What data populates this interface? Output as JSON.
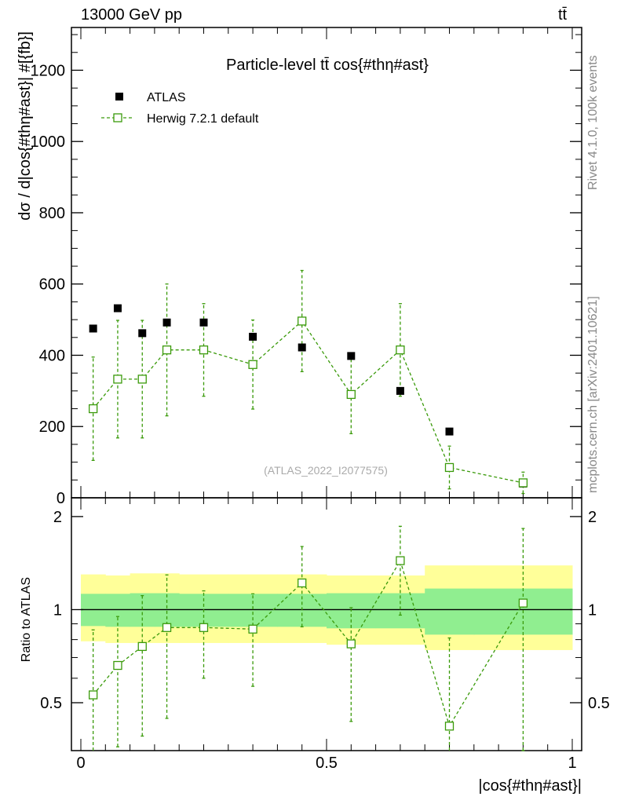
{
  "header": {
    "left": "13000 GeV pp",
    "right": "tt̄"
  },
  "side_labels": {
    "rivet": "Rivet 4.1.0,  100k events",
    "mcplots": "mcplots.cern.ch [arXiv:2401.10621]"
  },
  "colors": {
    "data": "#000000",
    "mc": "#3a9a0a",
    "band_inner": "#90ee90",
    "band_outer": "#ffff99"
  },
  "chart_data": [
    {
      "type": "scatter",
      "title": "Particle-level tt̄ cos{#thη#ast}",
      "ylabel": "dσ / d|cos{#thη#ast}| #[{fb}]",
      "xlabel": "",
      "xlim": [
        0,
        1
      ],
      "ylim": [
        0,
        1320
      ],
      "yticks": [
        0,
        200,
        400,
        600,
        800,
        1000,
        1200
      ],
      "ytick_labels": [
        "0",
        "200",
        "400",
        "600",
        "800",
        "1000",
        "1200"
      ],
      "watermark": "(ATLAS_2022_I2077575)",
      "legend": [
        "ATLAS",
        "Herwig 7.2.1 default"
      ],
      "bins": [
        [
          0.0,
          0.05
        ],
        [
          0.05,
          0.1
        ],
        [
          0.1,
          0.15
        ],
        [
          0.15,
          0.2
        ],
        [
          0.2,
          0.3
        ],
        [
          0.3,
          0.4
        ],
        [
          0.4,
          0.5
        ],
        [
          0.5,
          0.6
        ],
        [
          0.6,
          0.7
        ],
        [
          0.7,
          0.8
        ],
        [
          0.8,
          1.0
        ]
      ],
      "series": [
        {
          "name": "ATLAS",
          "x": [
            0.025,
            0.075,
            0.125,
            0.175,
            0.25,
            0.35,
            0.45,
            0.55,
            0.65,
            0.75,
            0.9
          ],
          "values": [
            475,
            532,
            462,
            492,
            492,
            452,
            422,
            398,
            300,
            186,
            40
          ],
          "err": [
            0,
            0,
            0,
            0,
            0,
            0,
            0,
            0,
            0,
            0,
            0
          ]
        },
        {
          "name": "Herwig 7.2.1 default",
          "x": [
            0.025,
            0.075,
            0.125,
            0.175,
            0.25,
            0.35,
            0.45,
            0.55,
            0.65,
            0.75,
            0.9
          ],
          "values": [
            250,
            333,
            333,
            415,
            415,
            374,
            496,
            290,
            415,
            85,
            42
          ],
          "err": [
            145,
            165,
            165,
            185,
            130,
            125,
            142,
            110,
            130,
            60,
            30
          ]
        }
      ]
    },
    {
      "type": "scatter",
      "title": "",
      "ylabel": "Ratio to ATLAS",
      "xlabel": "|cos{#thη#ast}|",
      "xlim": [
        0,
        1
      ],
      "ylim": [
        0.35,
        2.3
      ],
      "yticks": [
        0.5,
        1,
        2
      ],
      "ytick_labels": [
        "0.5",
        "1",
        "2"
      ],
      "xticks": [
        0,
        0.5,
        1
      ],
      "xtick_labels": [
        "0",
        "0.5",
        "1"
      ],
      "reference": 1,
      "bands": {
        "inner": [
          [
            0.885,
            1.125
          ],
          [
            0.88,
            1.125
          ],
          [
            0.88,
            1.13
          ],
          [
            0.88,
            1.13
          ],
          [
            0.88,
            1.125
          ],
          [
            0.88,
            1.125
          ],
          [
            0.88,
            1.125
          ],
          [
            0.87,
            1.13
          ],
          [
            0.87,
            1.13
          ],
          [
            0.83,
            1.17
          ],
          [
            0.83,
            1.17
          ]
        ],
        "outer": [
          [
            0.79,
            1.3
          ],
          [
            0.78,
            1.29
          ],
          [
            0.78,
            1.31
          ],
          [
            0.78,
            1.31
          ],
          [
            0.78,
            1.3
          ],
          [
            0.78,
            1.3
          ],
          [
            0.78,
            1.3
          ],
          [
            0.77,
            1.29
          ],
          [
            0.77,
            1.29
          ],
          [
            0.74,
            1.39
          ],
          [
            0.74,
            1.39
          ]
        ]
      },
      "series": [
        {
          "name": "Herwig 7.2.1 default",
          "x": [
            0.025,
            0.075,
            0.125,
            0.175,
            0.25,
            0.35,
            0.45,
            0.55,
            0.65,
            0.75,
            0.9
          ],
          "values": [
            0.53,
            0.66,
            0.76,
            0.875,
            0.875,
            0.865,
            1.22,
            0.775,
            1.44,
            0.42,
            1.05
          ],
          "err_lo": [
            0.33,
            0.3,
            0.37,
            0.43,
            0.275,
            0.3,
            0.34,
            0.34,
            0.48,
            0.1,
            0.7
          ],
          "err_hi": [
            0.33,
            0.29,
            0.35,
            0.42,
            0.275,
            0.26,
            0.38,
            0.24,
            0.42,
            0.39,
            0.78
          ]
        }
      ]
    }
  ]
}
